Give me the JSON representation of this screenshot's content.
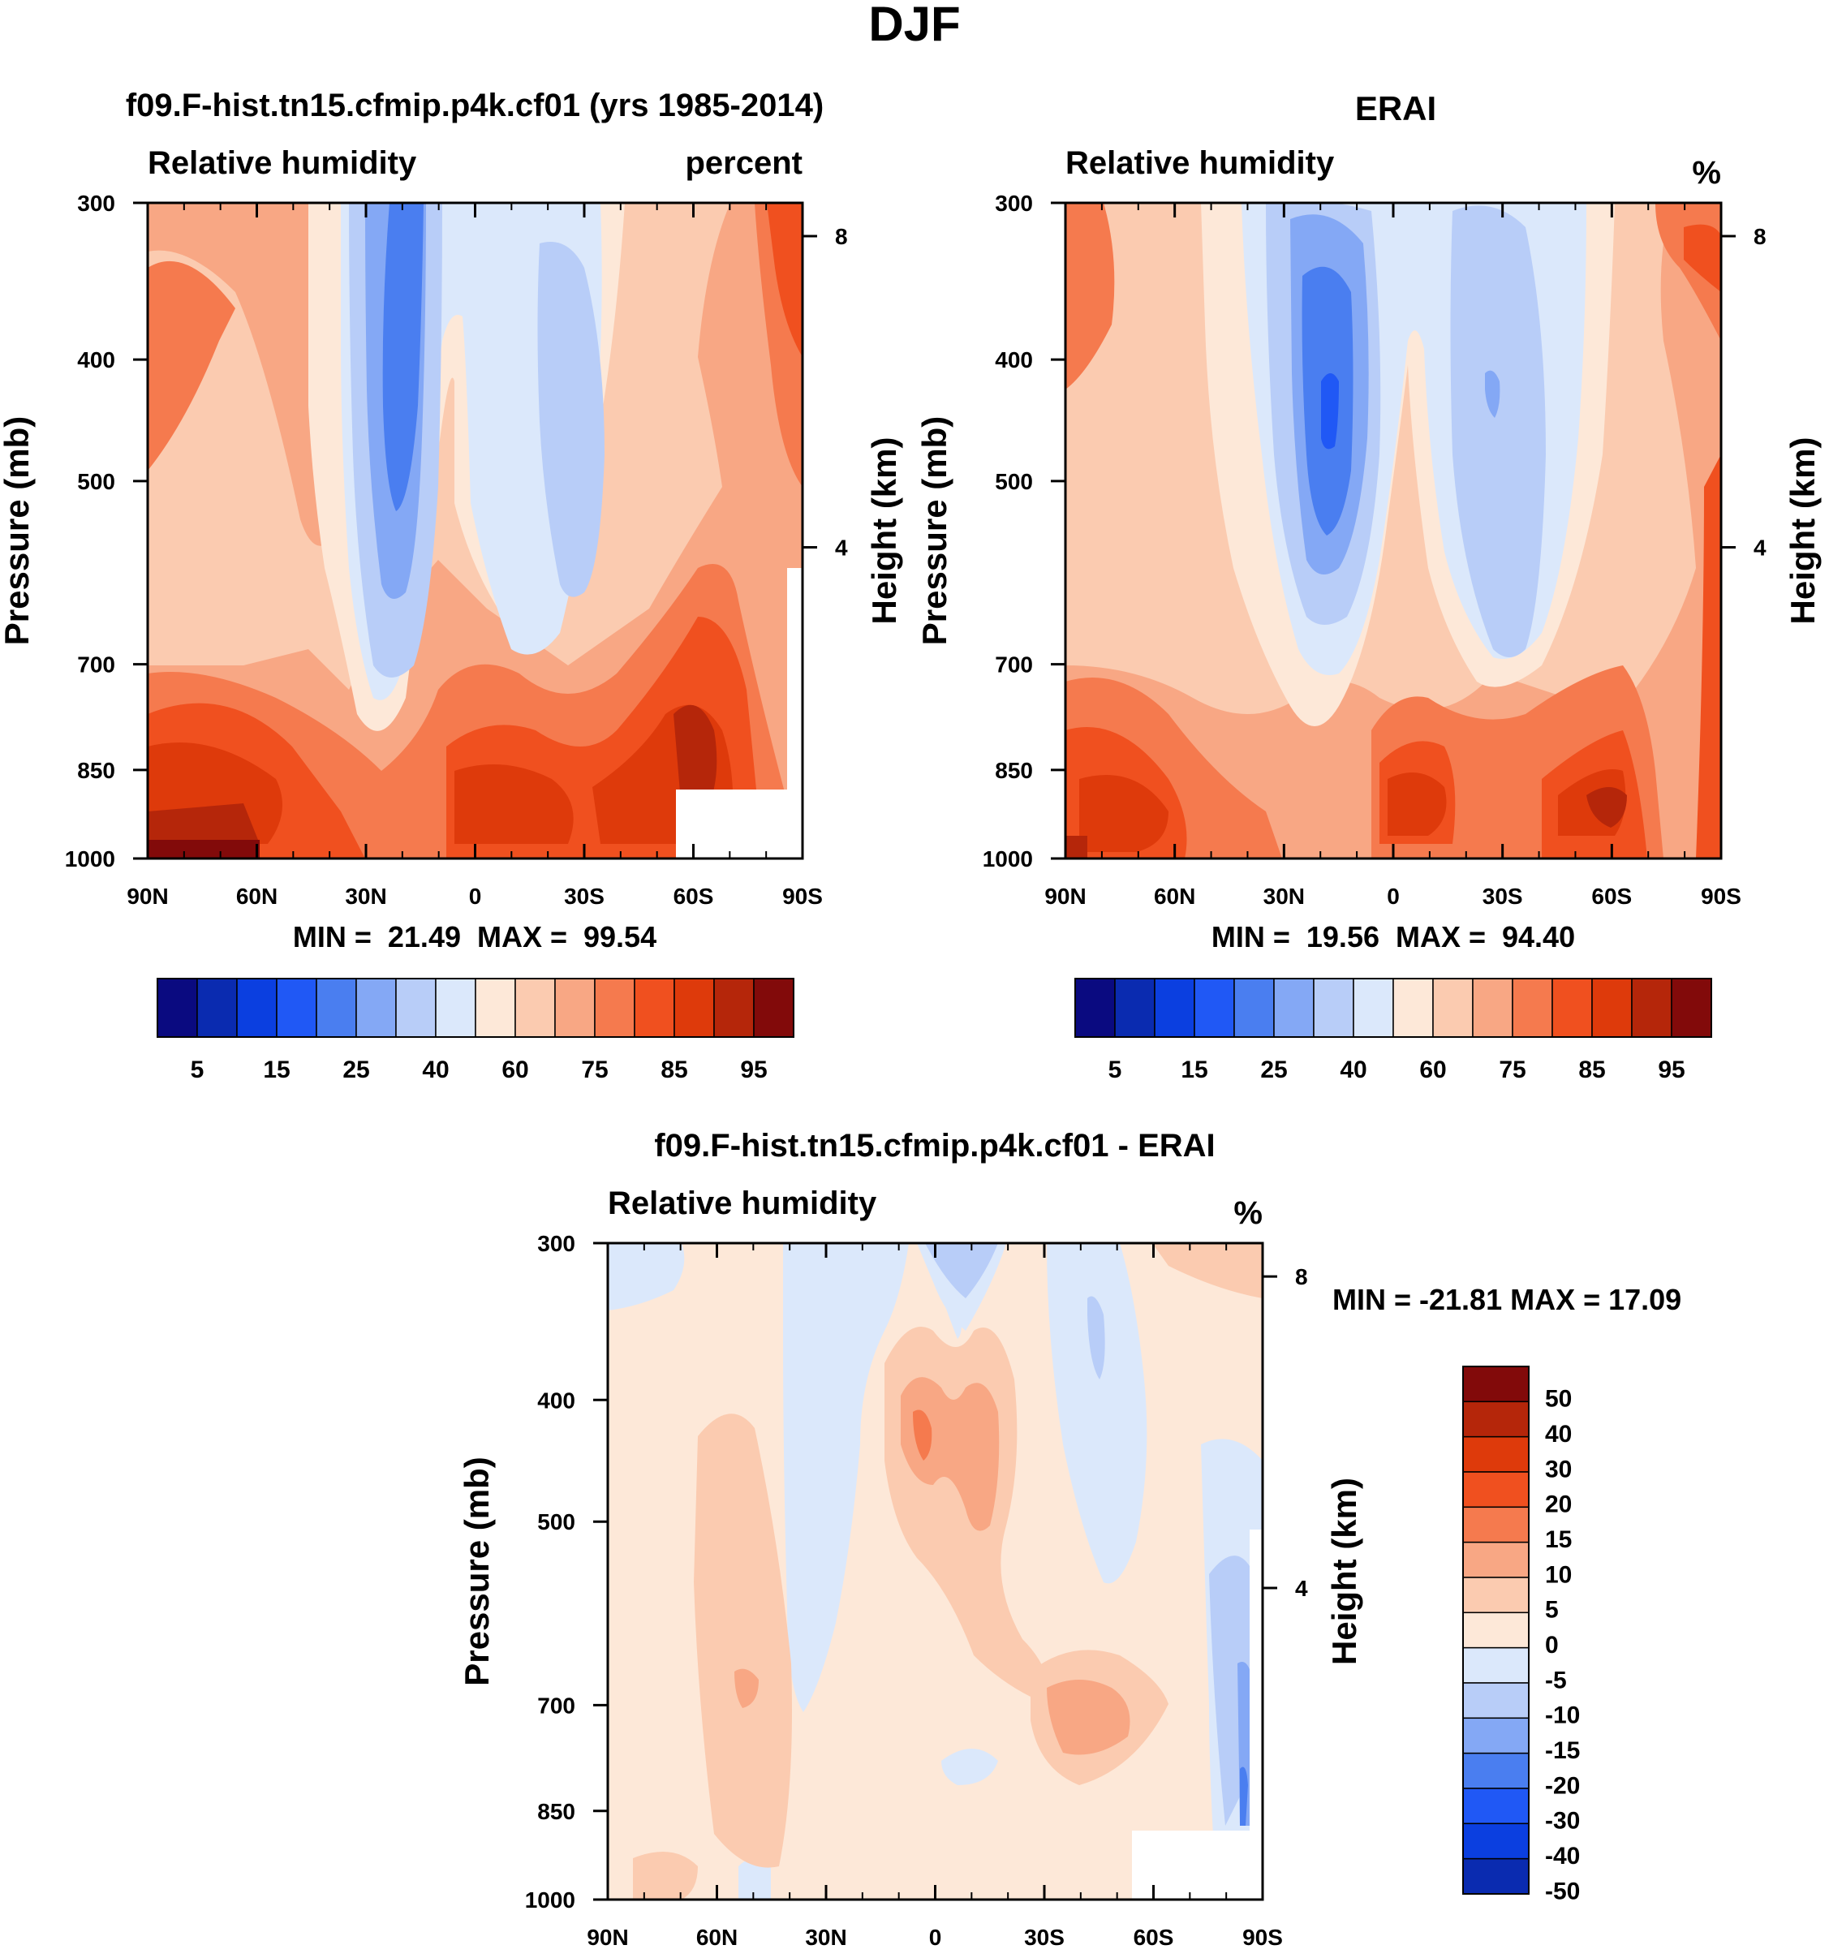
{
  "figure_title": "DJF",
  "colors": {
    "rh_scale": [
      "#0a0a80",
      "#0a2bb0",
      "#0b3fe0",
      "#2058f5",
      "#4a7ef0",
      "#84a8f5",
      "#b8cdf8",
      "#dbe8fb",
      "#fde8d8",
      "#fbcbb0",
      "#f8a784",
      "#f57a4e",
      "#f0501f",
      "#de3a0b",
      "#b5260a",
      "#820a0a"
    ],
    "diff_scale": [
      "#0a0a80",
      "#0a2bb0",
      "#0b3fe0",
      "#2058f5",
      "#4a7ef0",
      "#84a8f5",
      "#b8cdf8",
      "#dbe8fb",
      "#fde8d8",
      "#fbcbb0",
      "#f8a784",
      "#f57a4e",
      "#f0501f",
      "#de3a0b",
      "#b5260a",
      "#820a0a"
    ],
    "blank": "#ffffff"
  },
  "chart_data": [
    {
      "type": "heatmap",
      "id": "model",
      "title": "f09.F-hist.tn15.cfmip.p4k.cf01 (yrs 1985-2014)",
      "left_label": "Relative humidity",
      "right_label": "percent",
      "ylabel": "Pressure (mb)",
      "y2label": "Height (km)",
      "xticks": [
        "90N",
        "60N",
        "30N",
        "0",
        "30S",
        "60S",
        "90S"
      ],
      "yticks": [
        "300",
        "400",
        "500",
        "700",
        "850",
        "1000"
      ],
      "ytick_values": [
        300,
        400,
        500,
        700,
        850,
        1000
      ],
      "y2ticks": [
        "8",
        "4"
      ],
      "y2tick_values": [
        8,
        4
      ],
      "stats": "MIN =  21.49  MAX =  99.54",
      "colorbar_labels": [
        "5",
        "15",
        "25",
        "40",
        "60",
        "75",
        "85",
        "95"
      ],
      "colorbar_levels": [
        5,
        10,
        15,
        20,
        25,
        30,
        40,
        50,
        60,
        70,
        75,
        80,
        85,
        90,
        95
      ],
      "contour_regions": [
        {
          "level": 60,
          "lat": [
            -90,
            -65,
            -55,
            -35,
            -20,
            -5,
            10,
            25,
            40,
            55,
            70,
            90
          ],
          "p_top": [
            1000,
            880,
            760,
            600,
            500,
            410,
            360,
            420,
            520,
            620,
            760,
            1000
          ],
          "note": "above 60 outside tropics"
        },
        {
          "level": 40,
          "lat": [
            -38,
            -30,
            -20,
            -10
          ],
          "p": [
            300,
            720,
            820,
            300
          ],
          "note": "NH-side blue tongue"
        },
        {
          "level": 25,
          "lat": [
            -28,
            -20,
            -14
          ],
          "p": [
            300,
            580,
            300
          ],
          "note": "deepest minimum near 20N, 400-600 mb"
        },
        {
          "level": 40,
          "lat": [
            20,
            25,
            35,
            45
          ],
          "p": [
            300,
            690,
            700,
            300
          ],
          "note": "SH-side blue tongue near 30S"
        },
        {
          "level": 85,
          "lat": [
            -80,
            -70,
            -55,
            0,
            20,
            50,
            65
          ],
          "p": [
            930,
            880,
            900,
            910,
            940,
            880,
            860
          ],
          "note": "boundary-layer maxima"
        },
        {
          "level": 95,
          "lat": [
            -90,
            -80,
            -70
          ],
          "p": [
            960,
            1000,
            990
          ],
          "note": "max near 90N surface"
        }
      ],
      "missing": {
        "lat": [
          55,
          90
        ],
        "p": [
          930,
          1000
        ]
      }
    },
    {
      "type": "heatmap",
      "id": "obs",
      "title": "ERAI",
      "left_label": "Relative humidity",
      "right_label": "%",
      "ylabel": "Pressure (mb)",
      "y2label": "Height (km)",
      "xticks": [
        "90N",
        "60N",
        "30N",
        "0",
        "30S",
        "60S",
        "90S"
      ],
      "yticks": [
        "300",
        "400",
        "500",
        "700",
        "850",
        "1000"
      ],
      "ytick_values": [
        300,
        400,
        500,
        700,
        850,
        1000
      ],
      "y2ticks": [
        "8",
        "4"
      ],
      "y2tick_values": [
        8,
        4
      ],
      "stats": "MIN =  19.56  MAX =  94.40",
      "colorbar_labels": [
        "5",
        "15",
        "25",
        "40",
        "60",
        "75",
        "85",
        "95"
      ],
      "colorbar_levels": [
        5,
        10,
        15,
        20,
        25,
        30,
        40,
        50,
        60,
        70,
        75,
        80,
        85,
        90,
        95
      ],
      "contour_regions": [
        {
          "level": 40,
          "lat": [
            -35,
            -25,
            -15,
            -8
          ],
          "p": [
            300,
            750,
            760,
            300
          ],
          "note": "NH-side blue"
        },
        {
          "level": 20,
          "lat": [
            -22,
            -18,
            -15
          ],
          "p": [
            480,
            550,
            480
          ],
          "note": "minimum near 18N 500 mb"
        },
        {
          "level": 40,
          "lat": [
            15,
            25,
            35,
            45
          ],
          "p": [
            300,
            740,
            740,
            300
          ],
          "note": "SH-side blue"
        },
        {
          "level": 85,
          "lat": [
            -5,
            5,
            15,
            50,
            60,
            70
          ],
          "p": [
            930,
            940,
            930,
            910,
            900,
            920
          ],
          "note": "boundary-layer maxima"
        }
      ]
    },
    {
      "type": "heatmap",
      "id": "diff",
      "title": "f09.F-hist.tn15.cfmip.p4k.cf01 - ERAI",
      "left_label": "Relative humidity",
      "right_label": "%",
      "ylabel": "Pressure (mb)",
      "y2label": "Height (km)",
      "xticks": [
        "90N",
        "60N",
        "30N",
        "0",
        "30S",
        "60S",
        "90S"
      ],
      "yticks": [
        "300",
        "400",
        "500",
        "700",
        "850",
        "1000"
      ],
      "ytick_values": [
        300,
        400,
        500,
        700,
        850,
        1000
      ],
      "y2ticks": [
        "8",
        "4"
      ],
      "y2tick_values": [
        8,
        4
      ],
      "stats": "MIN = -21.81  MAX =  17.09",
      "colorbar_labels": [
        "50",
        "40",
        "30",
        "20",
        "15",
        "10",
        "5",
        "0",
        "-5",
        "-10",
        "-15",
        "-20",
        "-30",
        "-40",
        "-50"
      ],
      "colorbar_levels": [
        -50,
        -40,
        -30,
        -20,
        -15,
        -10,
        -5,
        0,
        5,
        10,
        15,
        20,
        30,
        40,
        50
      ],
      "contour_regions": [
        {
          "level": -5,
          "lat": [
            -45,
            -30,
            -20,
            -10
          ],
          "p": [
            300,
            820,
            900,
            300
          ],
          "note": "NH-subtropics negative"
        },
        {
          "level": 5,
          "lat": [
            -10,
            0,
            10
          ],
          "p": [
            420,
            520,
            640
          ],
          "note": "tropical positive band"
        },
        {
          "level": 10,
          "lat": [
            -5,
            -2,
            2
          ],
          "p": [
            480,
            520,
            480
          ],
          "note": "local max near equator 500 mb"
        },
        {
          "level": -5,
          "lat": [
            30,
            40,
            50
          ],
          "p": [
            300,
            600,
            300
          ],
          "note": "SH-subtropics negative"
        },
        {
          "level": -15,
          "lat": [
            80,
            85,
            88
          ],
          "p": [
            680,
            900,
            950
          ],
          "note": "min near 85S low levels"
        }
      ],
      "missing": {
        "lat": [
          55,
          90
        ],
        "p": [
          930,
          1000
        ]
      }
    }
  ]
}
